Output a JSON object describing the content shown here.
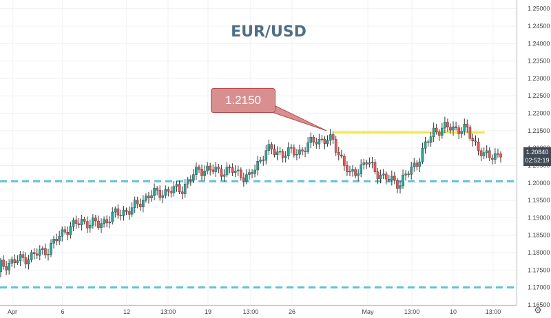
{
  "title": "EUR/USD",
  "annotation": {
    "label": "1.2150",
    "level": 1.215
  },
  "last_price": {
    "price": "1.20840",
    "countdown": "02:52:19"
  },
  "settings_icon": "gear-icon",
  "colors": {
    "up": "#26a69a",
    "down": "#ef5350",
    "resistance": "#f5e83a",
    "support": "#5fc3d6",
    "grid": "#eef1f4",
    "axis_text": "#444444",
    "callout": "#d88f8f"
  },
  "chart_data": {
    "type": "candlestick",
    "title": "EUR/USD",
    "ylim": [
      1.165,
      1.2525
    ],
    "y_ticks": [
      "1.25000",
      "1.24500",
      "1.24000",
      "1.23500",
      "1.23000",
      "1.22500",
      "1.22000",
      "1.21500",
      "1.21000",
      "1.20500",
      "1.20000",
      "1.19500",
      "1.19000",
      "1.18500",
      "1.18000",
      "1.17500",
      "1.17000",
      "1.16500"
    ],
    "x_ticks": [
      "Apr",
      "6",
      "12",
      "13:00",
      "19",
      "13:00",
      "26",
      "May",
      "13:00",
      "10",
      "13:00"
    ],
    "horizontal_lines": [
      {
        "value": 1.2145,
        "style": "solid",
        "color": "#f5e83a",
        "x_start": "Apr 29",
        "x_end": "May 12"
      },
      {
        "value": 1.2005,
        "style": "dashed",
        "color": "#5fc3d6"
      },
      {
        "value": 1.17,
        "style": "dashed",
        "color": "#5fc3d6"
      }
    ],
    "close_path": [
      [
        "Apr 1",
        1.176
      ],
      [
        "Apr 2",
        1.1775
      ],
      [
        "Apr 5",
        1.179
      ],
      [
        "Apr 6",
        1.181
      ],
      [
        "Apr 7",
        1.1865
      ],
      [
        "Apr 8",
        1.189
      ],
      [
        "Apr 9",
        1.188
      ],
      [
        "Apr 12",
        1.191
      ],
      [
        "Apr 13",
        1.1925
      ],
      [
        "Apr 14",
        1.1965
      ],
      [
        "Apr 15",
        1.1975
      ],
      [
        "Apr 16",
        1.1985
      ],
      [
        "Apr 19",
        1.204
      ],
      [
        "Apr 20",
        1.2035
      ],
      [
        "Apr 21",
        1.2035
      ],
      [
        "Apr 22",
        1.2015
      ],
      [
        "Apr 23",
        1.2095
      ],
      [
        "Apr 26",
        1.2085
      ],
      [
        "Apr 27",
        1.209
      ],
      [
        "Apr 28",
        1.2125
      ],
      [
        "Apr 29",
        1.212
      ],
      [
        "Apr 30",
        1.202
      ],
      [
        "May 3",
        1.206
      ],
      [
        "May 4",
        1.2015
      ],
      [
        "May 5",
        1.2
      ],
      [
        "May 6",
        1.206
      ],
      [
        "May 7",
        1.215
      ],
      [
        "May 10",
        1.216
      ],
      [
        "May 11",
        1.215
      ],
      [
        "May 12",
        1.2075
      ],
      [
        "May 13",
        1.2084
      ]
    ]
  }
}
